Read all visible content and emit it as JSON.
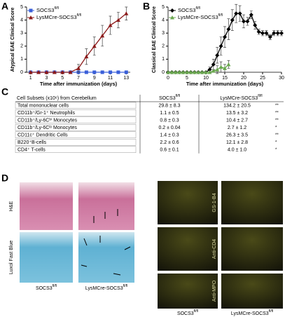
{
  "panel_labels": [
    "A",
    "B",
    "C",
    "D"
  ],
  "chart_data": [
    {
      "type": "line",
      "xlabel": "Time after immunization (days)",
      "ylabel": "Atypical EAE Clinical Score",
      "xlim": [
        0.5,
        13.5
      ],
      "xticks": [
        1,
        3,
        5,
        7,
        9,
        11,
        13
      ],
      "ylim": [
        0,
        5
      ],
      "yticks": [
        0,
        1,
        2,
        3,
        4,
        5
      ],
      "legend": "upper left",
      "series": [
        {
          "name": "SOCS3",
          "name_sup": "fl/fl",
          "color": "#3a5fd9",
          "marker": "square",
          "x": [
            1,
            2,
            3,
            4,
            5,
            6,
            7,
            8,
            9,
            10,
            11,
            12,
            13
          ],
          "values": [
            0,
            0,
            0,
            0,
            0,
            0,
            0,
            0,
            0,
            0,
            0,
            0,
            0
          ],
          "errors": [
            null,
            null,
            null,
            null,
            null,
            null,
            null,
            null,
            null,
            null,
            null,
            null,
            null
          ]
        },
        {
          "name": "LysMCre-SOCS3",
          "name_sup": "fl/fl",
          "color": "#8b1a1a",
          "marker": "triangle",
          "x": [
            1,
            2,
            3,
            4,
            5,
            6,
            7,
            8,
            9,
            10,
            11,
            12,
            13
          ],
          "values": [
            0,
            0,
            0,
            0,
            0,
            0,
            0.3,
            1.2,
            2.0,
            2.8,
            3.6,
            4.0,
            4.5
          ],
          "errors": [
            null,
            null,
            null,
            null,
            null,
            null,
            0.3,
            0.6,
            0.7,
            0.8,
            0.7,
            0.6,
            0.5
          ]
        }
      ]
    },
    {
      "type": "line",
      "xlabel": "Time after immunization (days)",
      "ylabel": "Classical EAE Clinical Score",
      "xlim": [
        0,
        30
      ],
      "xticks": [
        0,
        5,
        10,
        15,
        20,
        25,
        30
      ],
      "ylim": [
        0,
        5
      ],
      "yticks": [
        0,
        1,
        2,
        3,
        4,
        5
      ],
      "legend": "upper left",
      "series": [
        {
          "name": "SOCS3",
          "name_sup": "fl/fl",
          "color": "#000000",
          "marker": "diamond",
          "x": [
            0,
            1,
            2,
            3,
            4,
            5,
            6,
            7,
            8,
            9,
            10,
            11,
            12,
            13,
            14,
            15,
            16,
            17,
            18,
            19,
            20,
            21,
            22,
            23,
            24,
            25,
            26,
            27,
            28,
            29,
            30
          ],
          "values": [
            0,
            0,
            0,
            0,
            0,
            0,
            0,
            0,
            0,
            0,
            0,
            0.2,
            0.6,
            1.3,
            2.0,
            2.7,
            3.3,
            4.0,
            4.5,
            4.5,
            3.9,
            3.9,
            4.4,
            3.6,
            3.1,
            3.0,
            3.0,
            2.7,
            3.0,
            3.0,
            3.0
          ],
          "errors": [
            null,
            null,
            null,
            null,
            null,
            null,
            null,
            null,
            null,
            null,
            null,
            0.2,
            0.4,
            0.6,
            0.7,
            0.8,
            0.8,
            0.8,
            0.7,
            0.6,
            0.5,
            0.3,
            0.3,
            0.3,
            0.2,
            0.2,
            0.2,
            0.2,
            0.2,
            0.2,
            0.2
          ]
        },
        {
          "name": "LysMCre-SOCS3",
          "name_sup": "fl/fl",
          "color": "#6aa84f",
          "marker": "triangle",
          "x": [
            0,
            1,
            2,
            3,
            4,
            5,
            6,
            7,
            8,
            9,
            10,
            11,
            12,
            13,
            14,
            15,
            16
          ],
          "values": [
            0,
            0,
            0,
            0,
            0,
            0,
            0,
            0,
            0,
            0,
            0,
            0,
            0.1,
            0.2,
            0.4,
            0.3,
            0.6
          ],
          "errors": [
            null,
            null,
            null,
            null,
            null,
            null,
            null,
            null,
            null,
            null,
            null,
            null,
            0.1,
            0.3,
            0.4,
            0.3,
            0.3
          ]
        }
      ]
    }
  ],
  "table": {
    "header": {
      "col1": "Cell Subsets (x10⁶) from Cerebellum",
      "col2": "SOCS3",
      "col2_sup": "fl/fl",
      "col3": "LysMCre-SOCS3",
      "col3_sup": "fl/fl"
    },
    "rows": [
      [
        "Total mononuclear cells",
        "29.8 ± 8.3",
        "134.2 ± 20.5",
        "**"
      ],
      [
        "CD11b⁺/Gr-1⁺ Neutrophils",
        "1.1 ± 0.5",
        "13.5 ± 3.2",
        "**"
      ],
      [
        "CD11b⁺/Ly-6Cʰⁱ Monocytes",
        "0.8 ± 0.3",
        "10.4 ± 2.7",
        "**"
      ],
      [
        "CD11b⁺/Ly-6Cˡᵒ Monocytes",
        "0.2 ± 0.04",
        "2.7 ± 1.2",
        "*"
      ],
      [
        "CD11c⁺ Dendritic Cells",
        "1.4 ± 0.3",
        "26.3 ± 3.5",
        "**"
      ],
      [
        "B220⁺B-cells",
        "2.2 ± 0.6",
        "12.1 ± 2.8",
        "*"
      ],
      [
        "CD4⁺ T-cells",
        "0.6 ± 0.1",
        "4.0 ± 1.0",
        "*"
      ]
    ]
  },
  "panel_d": {
    "stains": [
      "H&E",
      "Luxol Fast Blue"
    ],
    "markers": [
      "GS-1-B4",
      "Anti-CD4",
      "Anti-MPO"
    ],
    "groups": [
      {
        "name": "SOCS3",
        "sup": "fl/fl"
      },
      {
        "name": "LysMCre-SOCS3",
        "sup": "fl/fl"
      }
    ]
  }
}
